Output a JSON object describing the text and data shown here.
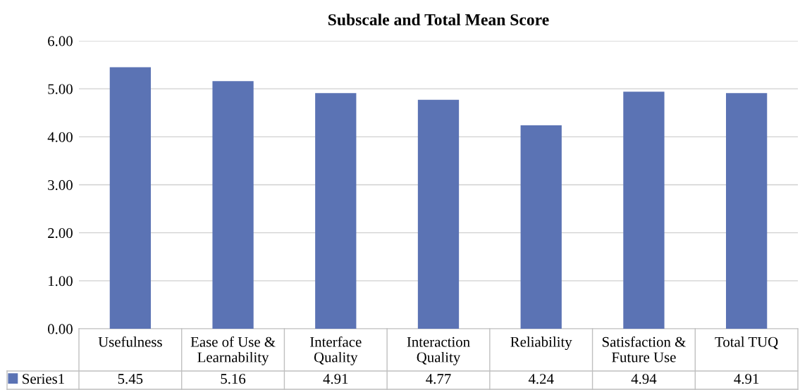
{
  "chart_data": {
    "type": "bar",
    "title": "Subscale and Total Mean Score",
    "categories": [
      "Usefulness",
      "Ease of Use &\nLearnability",
      "Interface\nQuality",
      "Interaction\nQuality",
      "Reliability",
      "Satisfaction &\nFuture Use",
      "Total TUQ"
    ],
    "series": [
      {
        "name": "Series1",
        "color": "#5b73b4",
        "values": [
          5.45,
          5.16,
          4.91,
          4.77,
          4.24,
          4.94,
          4.91
        ]
      }
    ],
    "ylim": [
      0,
      6
    ],
    "yticks": [
      {
        "value": 0,
        "label": "0.00"
      },
      {
        "value": 1,
        "label": "1.00"
      },
      {
        "value": 2,
        "label": "2.00"
      },
      {
        "value": 3,
        "label": "3.00"
      },
      {
        "value": 4,
        "label": "4.00"
      },
      {
        "value": 5,
        "label": "5.00"
      },
      {
        "value": 6,
        "label": "6.00"
      }
    ],
    "grid": "y",
    "legend": "bottom",
    "data_labels": true
  }
}
